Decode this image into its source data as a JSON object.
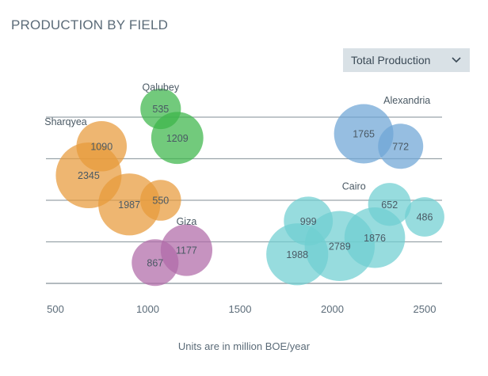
{
  "header": {
    "title": "PRODUCTION BY FIELD",
    "dropdown_value": "Total Production"
  },
  "icons": {
    "dropdown": "chevron-down-icon"
  },
  "x_caption": "Units are in million BOE/year",
  "colors": {
    "grid": "#9aa4aa",
    "Sharqyea": "#e89a3a",
    "Qalubey": "#3bb54a",
    "Alexandria": "#6da5d6",
    "Giza": "#b06aa8",
    "Cairo": "#6fcfd1"
  },
  "chart_data": {
    "type": "scatter",
    "title": "PRODUCTION BY FIELD",
    "xlabel": "Units are in million BOE/year",
    "ylabel": "",
    "x_ticks": [
      "500",
      "1000",
      "1500",
      "2000",
      "2500"
    ],
    "xlim": [
      500,
      2500
    ],
    "grid": true,
    "series": [
      {
        "name": "Sharqyea",
        "points": [
          {
            "x": 680,
            "y": 2.6,
            "value": 2345
          },
          {
            "x": 750,
            "y": 3.3,
            "value": 1090
          },
          {
            "x": 900,
            "y": 1.9,
            "value": 1987
          },
          {
            "x": 1070,
            "y": 2.0,
            "value": 550
          }
        ]
      },
      {
        "name": "Qalubey",
        "points": [
          {
            "x": 1070,
            "y": 4.2,
            "value": 535
          },
          {
            "x": 1160,
            "y": 3.5,
            "value": 1209
          }
        ]
      },
      {
        "name": "Alexandria",
        "points": [
          {
            "x": 2170,
            "y": 3.6,
            "value": 1765
          },
          {
            "x": 2370,
            "y": 3.3,
            "value": 772
          }
        ]
      },
      {
        "name": "Giza",
        "points": [
          {
            "x": 1040,
            "y": 0.5,
            "value": 867
          },
          {
            "x": 1210,
            "y": 0.8,
            "value": 1177
          }
        ]
      },
      {
        "name": "Cairo",
        "points": [
          {
            "x": 1810,
            "y": 0.7,
            "value": 1988
          },
          {
            "x": 1870,
            "y": 1.5,
            "value": 999
          },
          {
            "x": 2040,
            "y": 0.9,
            "value": 2789
          },
          {
            "x": 2230,
            "y": 1.1,
            "value": 1876
          },
          {
            "x": 2310,
            "y": 1.9,
            "value": 652
          },
          {
            "x": 2500,
            "y": 1.6,
            "value": 486
          }
        ]
      }
    ]
  }
}
